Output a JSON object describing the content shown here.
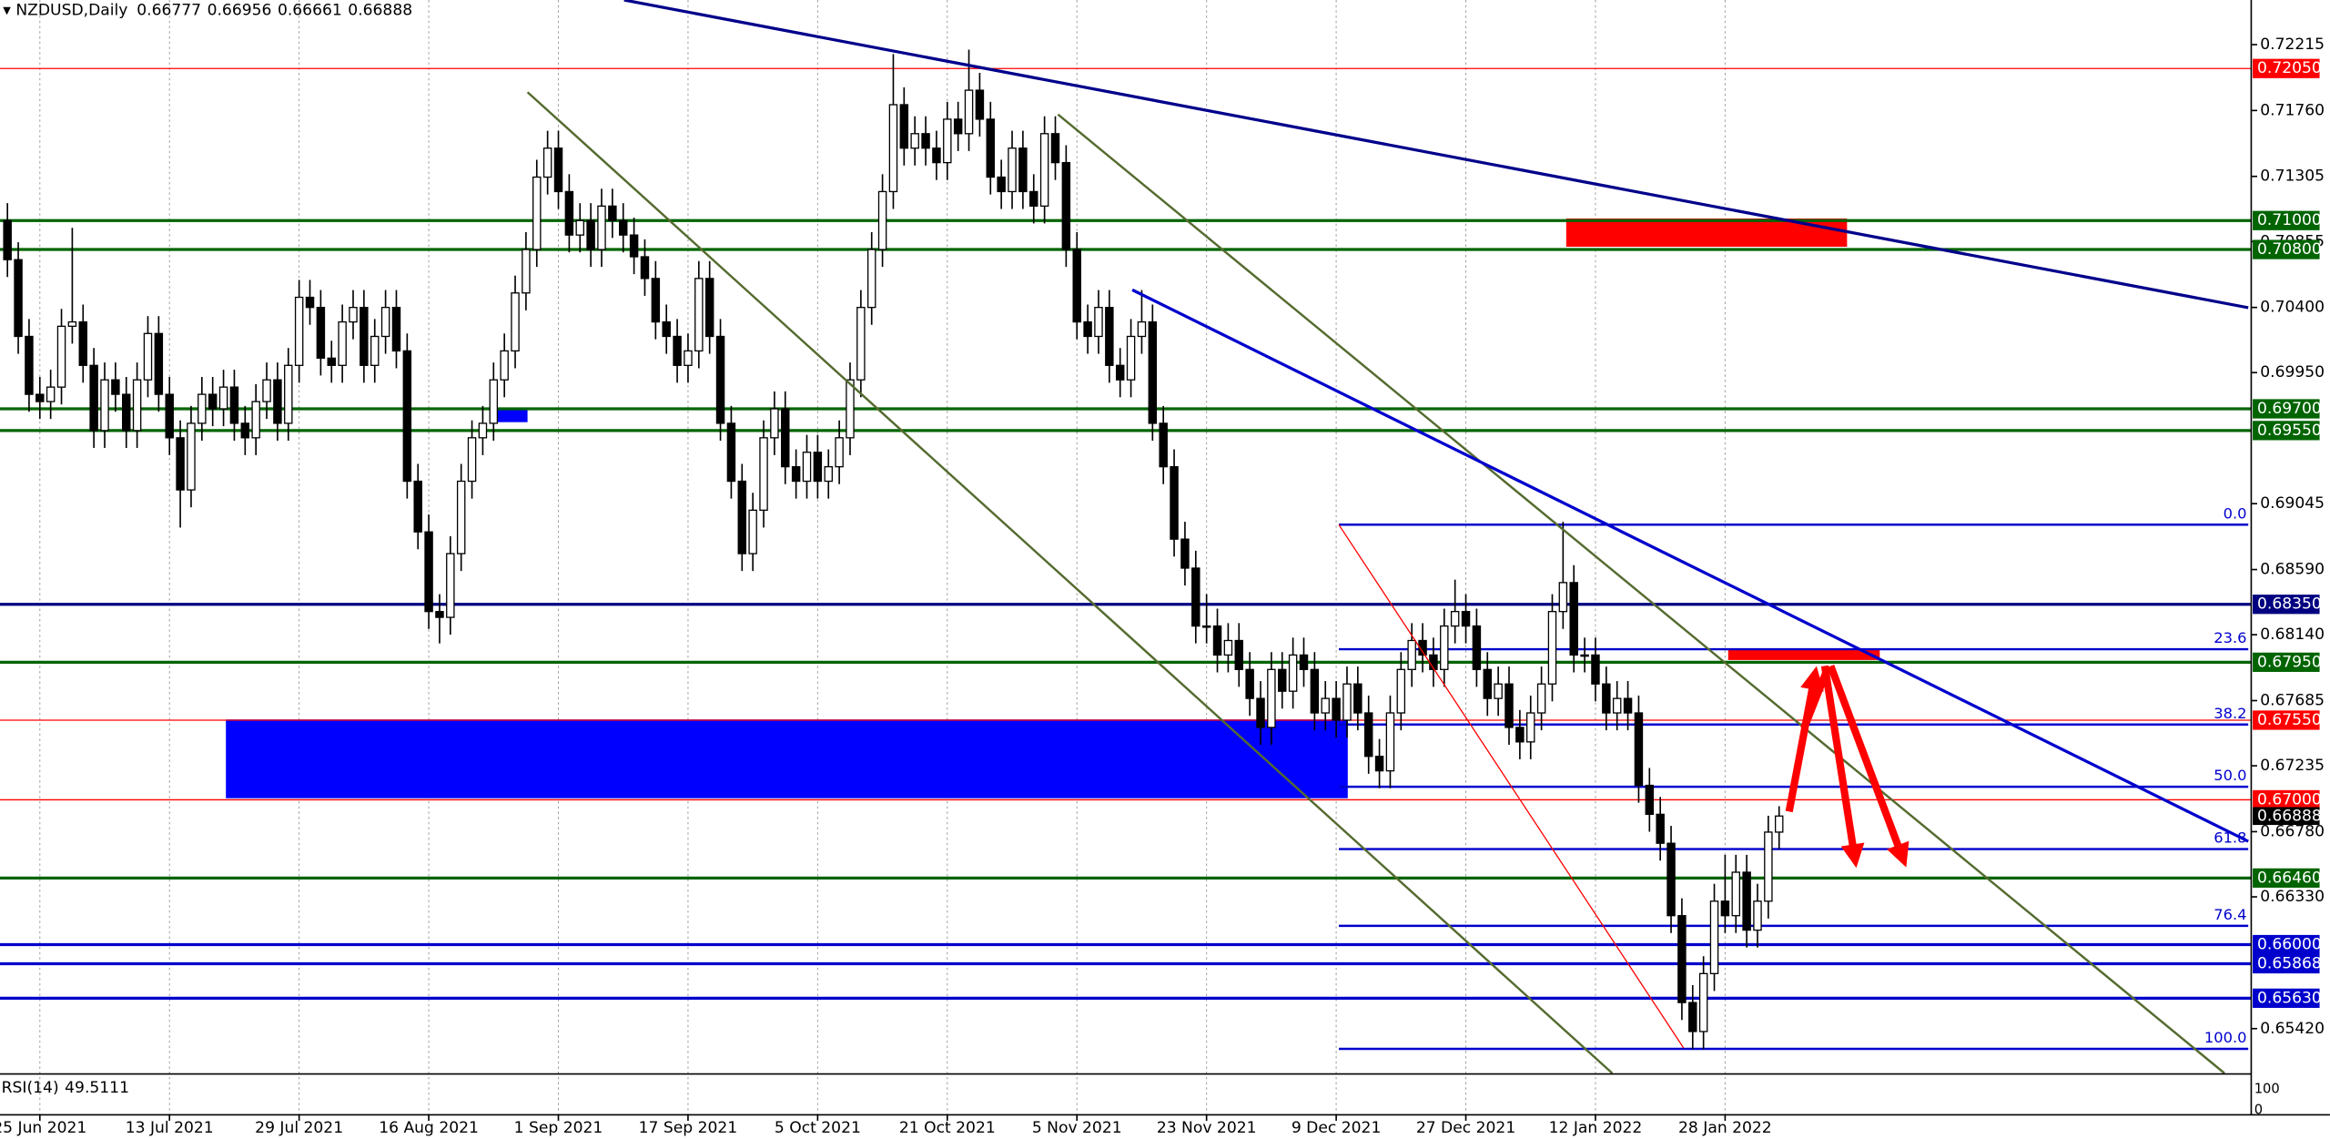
{
  "chart_data": {
    "type": "candlestick",
    "symbol": "NZDUSD,Daily",
    "ylim": [
      0.65112,
      0.72523
    ],
    "yticks": [
      0.72215,
      {
        "value": 0.7176,
        "label": "0.71760"
      },
      0.71305,
      0.70855,
      {
        "value": 0.704,
        "label": "0.70400"
      },
      {
        "value": 0.6995,
        "label": "0.69950"
      },
      0.69045,
      {
        "value": 0.6859,
        "label": "0.68590"
      },
      {
        "value": 0.6814,
        "label": "0.68140"
      },
      0.67685,
      0.67235,
      {
        "value": 0.6678,
        "label": "0.66780"
      },
      {
        "value": 0.6633,
        "label": "0.66330"
      },
      {
        "value": 0.6542,
        "label": "0.65420"
      }
    ],
    "grid": true,
    "up_color": "#ffffff",
    "down_color": "#000000",
    "categories": [
      null,
      null,
      null,
      "25 Jun 2021",
      null,
      null,
      null,
      null,
      null,
      null,
      null,
      null,
      null,
      null,
      null,
      "13 Jul 2021",
      null,
      null,
      null,
      null,
      null,
      null,
      null,
      null,
      null,
      null,
      null,
      "29 Jul 2021",
      null,
      null,
      null,
      null,
      null,
      null,
      null,
      null,
      null,
      null,
      null,
      "16 Aug 2021",
      null,
      null,
      null,
      null,
      null,
      null,
      null,
      null,
      null,
      null,
      null,
      "1 Sep 2021",
      null,
      null,
      null,
      null,
      null,
      null,
      null,
      null,
      null,
      null,
      null,
      "17 Sep 2021",
      null,
      null,
      null,
      null,
      null,
      null,
      null,
      null,
      null,
      null,
      null,
      "5 Oct 2021",
      null,
      null,
      null,
      null,
      null,
      null,
      null,
      null,
      null,
      null,
      null,
      "21 Oct 2021",
      null,
      null,
      null,
      null,
      null,
      null,
      null,
      null,
      null,
      null,
      null,
      "5 Nov 2021",
      null,
      null,
      null,
      null,
      null,
      null,
      null,
      null,
      null,
      null,
      null,
      "23 Nov 2021",
      null,
      null,
      null,
      null,
      null,
      null,
      null,
      null,
      null,
      null,
      null,
      "9 Dec 2021",
      null,
      null,
      null,
      null,
      null,
      null,
      null,
      null,
      null,
      null,
      null,
      "27 Dec 2021",
      null,
      null,
      null,
      null,
      null,
      null,
      null,
      null,
      null,
      null,
      null,
      "12 Jan 2022",
      null,
      null,
      null,
      null,
      null,
      null,
      null,
      null,
      null,
      null,
      null,
      "28 Jan 2022",
      null,
      null,
      null,
      null,
      null
    ],
    "ohlc": [
      [
        0.71,
        0.7112,
        0.7061,
        0.7073
      ],
      [
        0.7073,
        0.7085,
        0.7008,
        0.702
      ],
      [
        0.702,
        0.7032,
        0.6968,
        0.698
      ],
      [
        0.698,
        0.6992,
        0.6963,
        0.6975
      ],
      [
        0.6975,
        0.6997,
        0.6963,
        0.6985
      ],
      [
        0.6985,
        0.7039,
        0.6973,
        0.7027
      ],
      [
        0.7027,
        0.7095,
        0.7015,
        0.703
      ],
      [
        0.703,
        0.7042,
        0.6988,
        0.7
      ],
      [
        0.7,
        0.7012,
        0.6943,
        0.6955
      ],
      [
        0.6955,
        0.7002,
        0.6943,
        0.699
      ],
      [
        0.699,
        0.7002,
        0.6968,
        0.698
      ],
      [
        0.698,
        0.6992,
        0.6943,
        0.6955
      ],
      [
        0.6955,
        0.7002,
        0.6943,
        0.699
      ],
      [
        0.699,
        0.7034,
        0.6978,
        0.7022
      ],
      [
        0.7022,
        0.7034,
        0.6968,
        0.698
      ],
      [
        0.698,
        0.6992,
        0.6938,
        0.695
      ],
      [
        0.695,
        0.6962,
        0.6888,
        0.6914
      ],
      [
        0.6914,
        0.6972,
        0.6902,
        0.696
      ],
      [
        0.696,
        0.6992,
        0.6948,
        0.698
      ],
      [
        0.698,
        0.6992,
        0.6958,
        0.697
      ],
      [
        0.697,
        0.6997,
        0.6958,
        0.6985
      ],
      [
        0.6985,
        0.6997,
        0.6948,
        0.696
      ],
      [
        0.696,
        0.6972,
        0.6938,
        0.695
      ],
      [
        0.695,
        0.6987,
        0.6938,
        0.6975
      ],
      [
        0.6975,
        0.7002,
        0.6963,
        0.699
      ],
      [
        0.699,
        0.7002,
        0.6948,
        0.696
      ],
      [
        0.696,
        0.7012,
        0.6948,
        0.7
      ],
      [
        0.7,
        0.7059,
        0.6988,
        0.7047
      ],
      [
        0.7047,
        0.7059,
        0.7028,
        0.704
      ],
      [
        0.704,
        0.7052,
        0.6993,
        0.7005
      ],
      [
        0.7005,
        0.7017,
        0.6988,
        0.7
      ],
      [
        0.7,
        0.7042,
        0.6988,
        0.703
      ],
      [
        0.703,
        0.7052,
        0.7018,
        0.704
      ],
      [
        0.704,
        0.7052,
        0.6988,
        0.7
      ],
      [
        0.7,
        0.7032,
        0.6988,
        0.702
      ],
      [
        0.702,
        0.7052,
        0.7008,
        0.704
      ],
      [
        0.704,
        0.7052,
        0.6998,
        0.701
      ],
      [
        0.701,
        0.7022,
        0.6908,
        0.692
      ],
      [
        0.692,
        0.6932,
        0.6873,
        0.6885
      ],
      [
        0.6885,
        0.6897,
        0.6818,
        0.683
      ],
      [
        0.683,
        0.6842,
        0.6808,
        0.6826
      ],
      [
        0.6826,
        0.6882,
        0.6814,
        0.687
      ],
      [
        0.687,
        0.6932,
        0.6858,
        0.692
      ],
      [
        0.692,
        0.6962,
        0.6908,
        0.695
      ],
      [
        0.695,
        0.6972,
        0.6938,
        0.696
      ],
      [
        0.696,
        0.7002,
        0.6948,
        0.699
      ],
      [
        0.699,
        0.7022,
        0.6978,
        0.701
      ],
      [
        0.701,
        0.7062,
        0.6998,
        0.705
      ],
      [
        0.705,
        0.7092,
        0.7038,
        0.708
      ],
      [
        0.708,
        0.7142,
        0.7068,
        0.713
      ],
      [
        0.713,
        0.7162,
        0.7118,
        0.715
      ],
      [
        0.715,
        0.7162,
        0.7108,
        0.712
      ],
      [
        0.712,
        0.7132,
        0.7078,
        0.709
      ],
      [
        0.709,
        0.7112,
        0.7078,
        0.71
      ],
      [
        0.71,
        0.7112,
        0.7068,
        0.708
      ],
      [
        0.708,
        0.7122,
        0.7068,
        0.711
      ],
      [
        0.711,
        0.7122,
        0.7088,
        0.71
      ],
      [
        0.71,
        0.7112,
        0.7078,
        0.709
      ],
      [
        0.709,
        0.7102,
        0.7063,
        0.7075
      ],
      [
        0.7075,
        0.7087,
        0.7048,
        0.706
      ],
      [
        0.706,
        0.7072,
        0.7018,
        0.703
      ],
      [
        0.703,
        0.7042,
        0.7008,
        0.702
      ],
      [
        0.702,
        0.7032,
        0.6988,
        0.7
      ],
      [
        0.7,
        0.7022,
        0.6988,
        0.701
      ],
      [
        0.701,
        0.7072,
        0.6998,
        0.706
      ],
      [
        0.706,
        0.7072,
        0.7008,
        0.702
      ],
      [
        0.702,
        0.7032,
        0.6948,
        0.696
      ],
      [
        0.696,
        0.6972,
        0.6908,
        0.692
      ],
      [
        0.692,
        0.6932,
        0.6858,
        0.687
      ],
      [
        0.687,
        0.6912,
        0.6858,
        0.69
      ],
      [
        0.69,
        0.6962,
        0.6888,
        0.695
      ],
      [
        0.695,
        0.6982,
        0.6938,
        0.697
      ],
      [
        0.697,
        0.6982,
        0.6918,
        0.693
      ],
      [
        0.693,
        0.6942,
        0.6908,
        0.692
      ],
      [
        0.692,
        0.6952,
        0.6908,
        0.694
      ],
      [
        0.694,
        0.6952,
        0.6908,
        0.692
      ],
      [
        0.692,
        0.6942,
        0.6908,
        0.693
      ],
      [
        0.693,
        0.6962,
        0.6918,
        0.695
      ],
      [
        0.695,
        0.7002,
        0.6938,
        0.699
      ],
      [
        0.699,
        0.7052,
        0.6978,
        0.704
      ],
      [
        0.704,
        0.7092,
        0.7028,
        0.708
      ],
      [
        0.708,
        0.7132,
        0.7068,
        0.712
      ],
      [
        0.712,
        0.7215,
        0.7108,
        0.718
      ],
      [
        0.718,
        0.7192,
        0.7138,
        0.715
      ],
      [
        0.715,
        0.7172,
        0.7138,
        0.716
      ],
      [
        0.716,
        0.7172,
        0.7138,
        0.715
      ],
      [
        0.715,
        0.7162,
        0.7128,
        0.714
      ],
      [
        0.714,
        0.7182,
        0.7128,
        0.717
      ],
      [
        0.717,
        0.7182,
        0.7148,
        0.716
      ],
      [
        0.716,
        0.7218,
        0.7148,
        0.719
      ],
      [
        0.719,
        0.7202,
        0.7158,
        0.717
      ],
      [
        0.717,
        0.7182,
        0.7118,
        0.713
      ],
      [
        0.713,
        0.7142,
        0.7108,
        0.712
      ],
      [
        0.712,
        0.7162,
        0.7108,
        0.715
      ],
      [
        0.715,
        0.7162,
        0.7108,
        0.712
      ],
      [
        0.712,
        0.7132,
        0.7098,
        0.711
      ],
      [
        0.711,
        0.7172,
        0.7098,
        0.716
      ],
      [
        0.716,
        0.7172,
        0.7128,
        0.714
      ],
      [
        0.714,
        0.7152,
        0.7068,
        0.708
      ],
      [
        0.708,
        0.7092,
        0.7018,
        0.703
      ],
      [
        0.703,
        0.7042,
        0.7008,
        0.702
      ],
      [
        0.702,
        0.7052,
        0.7008,
        0.704
      ],
      [
        0.704,
        0.7052,
        0.6988,
        0.7
      ],
      [
        0.7,
        0.7012,
        0.6978,
        0.699
      ],
      [
        0.699,
        0.7032,
        0.6978,
        0.702
      ],
      [
        0.702,
        0.7052,
        0.7008,
        0.703
      ],
      [
        0.703,
        0.7042,
        0.6948,
        0.696
      ],
      [
        0.696,
        0.6972,
        0.6918,
        0.693
      ],
      [
        0.693,
        0.6942,
        0.6868,
        0.688
      ],
      [
        0.688,
        0.6892,
        0.6848,
        0.686
      ],
      [
        0.686,
        0.6872,
        0.6808,
        0.682
      ],
      [
        0.682,
        0.6842,
        0.6808,
        0.682
      ],
      [
        0.682,
        0.6832,
        0.6788,
        0.68
      ],
      [
        0.68,
        0.6822,
        0.6788,
        0.681
      ],
      [
        0.681,
        0.6822,
        0.6778,
        0.679
      ],
      [
        0.679,
        0.6802,
        0.6758,
        0.677
      ],
      [
        0.677,
        0.6782,
        0.6738,
        0.675
      ],
      [
        0.675,
        0.6802,
        0.6738,
        0.679
      ],
      [
        0.679,
        0.6802,
        0.6763,
        0.6775
      ],
      [
        0.6775,
        0.6812,
        0.6763,
        0.68
      ],
      [
        0.68,
        0.6812,
        0.6778,
        0.679
      ],
      [
        0.679,
        0.6802,
        0.6748,
        0.676
      ],
      [
        0.676,
        0.6782,
        0.6748,
        0.677
      ],
      [
        0.677,
        0.6782,
        0.6743,
        0.6755
      ],
      [
        0.6755,
        0.6792,
        0.6743,
        0.678
      ],
      [
        0.678,
        0.6792,
        0.6748,
        0.676
      ],
      [
        0.676,
        0.6772,
        0.6718,
        0.673
      ],
      [
        0.673,
        0.6742,
        0.6708,
        0.672
      ],
      [
        0.672,
        0.6772,
        0.6708,
        0.676
      ],
      [
        0.676,
        0.6802,
        0.6748,
        0.679
      ],
      [
        0.679,
        0.6822,
        0.6778,
        0.681
      ],
      [
        0.681,
        0.6822,
        0.6788,
        0.68
      ],
      [
        0.68,
        0.6812,
        0.6778,
        0.679
      ],
      [
        0.679,
        0.6832,
        0.6778,
        0.682
      ],
      [
        0.682,
        0.6852,
        0.6808,
        0.683
      ],
      [
        0.683,
        0.6842,
        0.6808,
        0.682
      ],
      [
        0.682,
        0.6832,
        0.6778,
        0.679
      ],
      [
        0.679,
        0.6802,
        0.6758,
        0.677
      ],
      [
        0.677,
        0.6792,
        0.6758,
        0.678
      ],
      [
        0.678,
        0.6792,
        0.6738,
        0.675
      ],
      [
        0.675,
        0.6762,
        0.6728,
        0.674
      ],
      [
        0.674,
        0.6772,
        0.6728,
        0.676
      ],
      [
        0.676,
        0.6792,
        0.6748,
        0.678
      ],
      [
        0.678,
        0.6842,
        0.6768,
        0.683
      ],
      [
        0.683,
        0.6892,
        0.6818,
        0.685
      ],
      [
        0.685,
        0.6862,
        0.6788,
        0.68
      ],
      [
        0.68,
        0.6812,
        0.6788,
        0.68
      ],
      [
        0.68,
        0.6812,
        0.6768,
        0.678
      ],
      [
        0.678,
        0.6792,
        0.6748,
        0.676
      ],
      [
        0.676,
        0.6782,
        0.6748,
        0.677
      ],
      [
        0.677,
        0.6782,
        0.6748,
        0.676
      ],
      [
        0.676,
        0.6772,
        0.6698,
        0.671
      ],
      [
        0.671,
        0.6722,
        0.6678,
        0.669
      ],
      [
        0.669,
        0.6702,
        0.6658,
        0.667
      ],
      [
        0.667,
        0.6682,
        0.6608,
        0.662
      ],
      [
        0.662,
        0.6632,
        0.6548,
        0.656
      ],
      [
        0.656,
        0.6572,
        0.6528,
        0.654
      ],
      [
        0.654,
        0.6592,
        0.6528,
        0.658
      ],
      [
        0.658,
        0.6642,
        0.6568,
        0.663
      ],
      [
        0.663,
        0.6662,
        0.6608,
        0.662
      ],
      [
        0.662,
        0.6662,
        0.6608,
        0.665
      ],
      [
        0.665,
        0.6662,
        0.6598,
        0.661
      ],
      [
        0.661,
        0.6642,
        0.6598,
        0.663
      ],
      [
        0.663,
        0.6689,
        0.6618,
        0.66777
      ],
      [
        0.66777,
        0.66956,
        0.66661,
        0.66888
      ]
    ],
    "levels": [
      {
        "value": 0.7205,
        "label": "0.72050",
        "color": "#ff0000"
      },
      {
        "value": 0.71,
        "label": "0.71000",
        "color": "#006400"
      },
      {
        "value": 0.708,
        "label": "0.70800",
        "color": "#006400"
      },
      {
        "value": 0.697,
        "label": "0.69700",
        "color": "#006400"
      },
      {
        "value": 0.6955,
        "label": "0.69550",
        "color": "#006400"
      },
      {
        "value": 0.6835,
        "label": "0.68350",
        "color": "#000080"
      },
      {
        "value": 0.6795,
        "label": "0.67950",
        "color": "#006400"
      },
      {
        "value": 0.6755,
        "label": "0.67550",
        "color": "#ff0000"
      },
      {
        "value": 0.67,
        "label": "0.67000",
        "color": "#ff0000"
      },
      {
        "value": 0.6646,
        "label": "0.66460",
        "color": "#006400"
      },
      {
        "value": 0.66,
        "label": "0.66000",
        "color": "#0000cd"
      },
      {
        "value": 0.65868,
        "label": "0.65868",
        "color": "#0000cd"
      },
      {
        "value": 0.6563,
        "label": "0.65630",
        "color": "#0000cd"
      }
    ],
    "fib_color": "#0000cd",
    "fib_levels": [
      {
        "value": 0.689,
        "label": "0.0"
      },
      {
        "value": 0.6804,
        "label": "23.6"
      },
      {
        "value": 0.6752,
        "label": "38.2"
      },
      {
        "value": 0.6709,
        "label": "50.0"
      },
      {
        "value": 0.6666,
        "label": "61.8"
      },
      {
        "value": 0.6613,
        "label": "76.4"
      },
      {
        "value": 0.6528,
        "label": "100.0"
      }
    ],
    "rsi_label": "RSI(14)",
    "rsi_value": 49.5111,
    "rsi_yticks": [
      100,
      0
    ]
  }
}
